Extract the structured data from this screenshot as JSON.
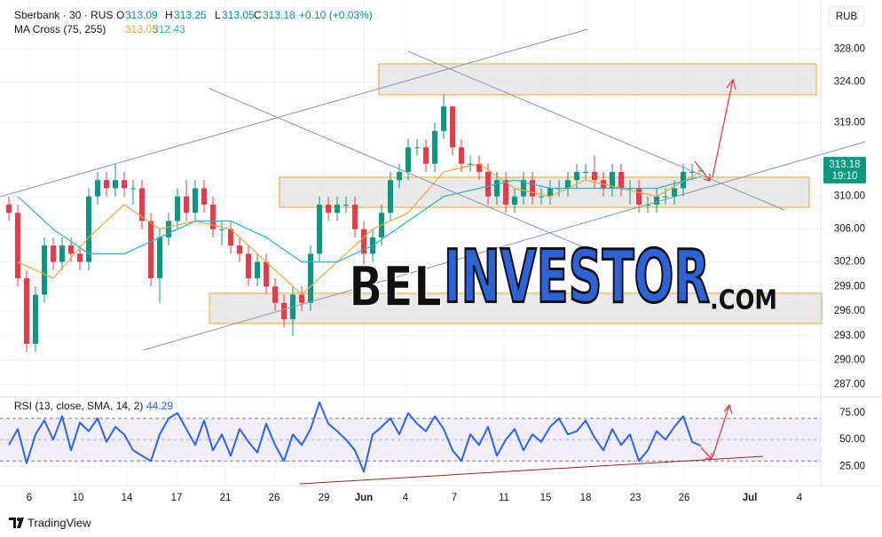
{
  "chart_data": [
    {
      "type": "candlestick",
      "title": "Sberbank · 30 · RUS",
      "ohlc_labels": [
        "O",
        "H",
        "L",
        "C"
      ],
      "change": "+0.10 (+0.03%)",
      "currency": "RUB",
      "countdown": "19:10",
      "indicator": "MA Cross (75, 255)",
      "up_color": "#089981",
      "down_color": "#f23645",
      "grid": true,
      "x": [
        1,
        2,
        3,
        4,
        5,
        6,
        7,
        8,
        9,
        10,
        11,
        12,
        13,
        14,
        15,
        16,
        17,
        18,
        19,
        20,
        21,
        22,
        23,
        24,
        25,
        26,
        27,
        28,
        29,
        30,
        31,
        32,
        33,
        34,
        35,
        36,
        37,
        38,
        39,
        40,
        41,
        42,
        43,
        44,
        45,
        46,
        47,
        48,
        49,
        50,
        51,
        52,
        53,
        54,
        55,
        56,
        57,
        58,
        59,
        60,
        61,
        62,
        63,
        64,
        65,
        66,
        67,
        68,
        69,
        70,
        71,
        72,
        73,
        74,
        75,
        76,
        77,
        78,
        79
      ],
      "open": [
        309,
        308,
        300,
        292,
        298,
        304,
        302,
        304,
        303,
        302,
        310,
        312,
        311,
        312,
        311,
        311,
        307,
        300,
        305,
        307,
        310,
        308,
        311,
        309,
        306,
        306,
        304,
        303,
        300,
        302,
        299,
        297,
        295,
        298,
        297,
        303,
        309,
        308,
        309,
        309,
        306,
        303,
        305,
        308,
        312,
        313,
        316,
        316,
        314,
        318,
        321,
        316,
        314,
        314,
        313,
        310,
        312,
        309,
        310,
        312,
        310,
        310,
        311,
        311,
        312,
        313,
        313,
        312,
        311,
        313,
        311,
        311,
        309,
        309,
        310,
        310,
        311,
        313,
        313.09
      ],
      "high": [
        310,
        309,
        301,
        299,
        305,
        305,
        305,
        305,
        304,
        311,
        313,
        313,
        314,
        313,
        312,
        312,
        308,
        306,
        308,
        311,
        312,
        312,
        312,
        310,
        307,
        307,
        305,
        304,
        303,
        303,
        300,
        298,
        299,
        299,
        304,
        310,
        310,
        310,
        310,
        310,
        307,
        306,
        309,
        313,
        314,
        317,
        317,
        317,
        319,
        322.5,
        321,
        317,
        315,
        315,
        314,
        313,
        313,
        311,
        313,
        313,
        311,
        312,
        312,
        313,
        314,
        314,
        315,
        313,
        314,
        314,
        312,
        312,
        310,
        311,
        311,
        312,
        314,
        314,
        313.25
      ],
      "low": [
        307,
        299,
        291,
        291,
        297,
        301,
        301,
        302,
        301,
        301,
        309,
        310,
        310,
        310,
        309,
        306,
        299,
        297,
        304,
        306,
        307,
        307,
        308,
        305,
        304,
        303,
        302,
        299,
        299,
        298,
        296,
        294,
        293,
        296,
        296,
        302,
        307,
        307,
        308,
        305,
        301,
        302,
        304,
        307,
        311,
        312,
        315,
        313,
        313,
        317,
        315,
        313,
        313,
        312,
        309,
        309,
        308,
        308,
        309,
        309,
        309,
        309,
        310,
        310,
        311,
        312,
        311,
        310,
        310,
        310,
        309,
        308,
        308,
        308,
        309,
        309,
        310,
        312,
        313.05
      ],
      "close": [
        308,
        300,
        292,
        298,
        304,
        302,
        304,
        303,
        302,
        310,
        312,
        311,
        312,
        311,
        311,
        307,
        300,
        305,
        307,
        310,
        308,
        311,
        309,
        306,
        306,
        304,
        303,
        300,
        302,
        299,
        297,
        295,
        298,
        297,
        303,
        309,
        308,
        309,
        309,
        306,
        303,
        305,
        308,
        312,
        313,
        316,
        316,
        314,
        318,
        321,
        316,
        314,
        314,
        313,
        310,
        312,
        309,
        310,
        312,
        310,
        310,
        311,
        311,
        312,
        313,
        313,
        312,
        311,
        313,
        311,
        311,
        309,
        309,
        310,
        310,
        311,
        313,
        313,
        313.18
      ],
      "series": [
        {
          "color": "#f7a43a",
          "x": [
            2,
            6,
            10,
            14,
            18,
            22,
            26,
            30,
            34,
            38,
            42,
            46,
            50,
            54,
            58,
            62,
            66,
            70,
            74,
            79
          ],
          "values": [
            302,
            300,
            305,
            309,
            306,
            307,
            306,
            302,
            298,
            302,
            306,
            308,
            313,
            314,
            311,
            310,
            312,
            311,
            310,
            313.05
          ]
        },
        {
          "color": "#26b5c8",
          "x": [
            2,
            6,
            10,
            14,
            18,
            22,
            26,
            30,
            34,
            38,
            42,
            46,
            50,
            54,
            58,
            62,
            66,
            70,
            74,
            79
          ],
          "values": [
            310,
            306,
            303,
            303,
            305,
            307,
            307,
            305,
            302,
            302,
            304,
            307,
            310,
            311,
            312,
            311,
            311,
            311,
            311,
            312.43
          ]
        }
      ],
      "xlim": [
        0,
        92.5
      ],
      "xticks": [
        {
          "value": 3.3,
          "label": "6"
        },
        {
          "value": 8.8,
          "label": "10"
        },
        {
          "value": 14.3,
          "label": "14"
        },
        {
          "value": 19.9,
          "label": "17"
        },
        {
          "value": 25.4,
          "label": "21"
        },
        {
          "value": 30.9,
          "label": "26"
        },
        {
          "value": 36.5,
          "label": "29"
        },
        {
          "value": 41,
          "label": "Jun"
        },
        {
          "value": 45.7,
          "label": "4"
        },
        {
          "value": 51.2,
          "label": "7"
        },
        {
          "value": 56.8,
          "label": "11"
        },
        {
          "value": 61.5,
          "label": "15"
        },
        {
          "value": 66,
          "label": "18"
        },
        {
          "value": 71.6,
          "label": "23"
        },
        {
          "value": 77.1,
          "label": "26"
        },
        {
          "value": 84.5,
          "label": "Jul"
        },
        {
          "value": 90.1,
          "label": "4"
        }
      ],
      "ylim": [
        285.5,
        334
      ],
      "yticks": [
        {
          "value": 287,
          "label": "287.00"
        },
        {
          "value": 290,
          "label": "290.00"
        },
        {
          "value": 293,
          "label": "293.00"
        },
        {
          "value": 296,
          "label": "296.00"
        },
        {
          "value": 299,
          "label": "299.00"
        },
        {
          "value": 302,
          "label": "302.00"
        },
        {
          "value": 306,
          "label": "306.00"
        },
        {
          "value": 310,
          "label": "310.00"
        },
        {
          "value": 319,
          "label": "319.00"
        },
        {
          "value": 324,
          "label": "324.00"
        },
        {
          "value": 328,
          "label": "328.00"
        }
      ]
    },
    {
      "type": "line",
      "title": "RSI (13, close, SMA, 14, 2)",
      "color": "#2962ff",
      "band": [
        30,
        70
      ],
      "x": [
        1,
        2,
        3,
        4,
        5,
        6,
        7,
        8,
        9,
        10,
        11,
        12,
        13,
        14,
        15,
        16,
        17,
        18,
        19,
        20,
        21,
        22,
        23,
        24,
        25,
        26,
        27,
        28,
        29,
        30,
        31,
        32,
        33,
        34,
        35,
        36,
        37,
        38,
        39,
        40,
        41,
        42,
        43,
        44,
        45,
        46,
        47,
        48,
        49,
        50,
        51,
        52,
        53,
        54,
        55,
        56,
        57,
        58,
        59,
        60,
        61,
        62,
        63,
        64,
        65,
        66,
        67,
        68,
        69,
        70,
        71,
        72,
        73,
        74,
        75,
        76,
        77,
        78,
        79
      ],
      "values": [
        45,
        60,
        28,
        55,
        68,
        50,
        72,
        40,
        66,
        58,
        70,
        48,
        62,
        55,
        40,
        35,
        30,
        55,
        70,
        75,
        60,
        45,
        68,
        40,
        55,
        35,
        60,
        48,
        38,
        65,
        45,
        30,
        55,
        45,
        60,
        85,
        65,
        58,
        50,
        40,
        20,
        55,
        62,
        70,
        55,
        75,
        65,
        58,
        72,
        60,
        40,
        30,
        55,
        45,
        62,
        35,
        50,
        60,
        40,
        55,
        48,
        62,
        70,
        55,
        58,
        68,
        52,
        40,
        60,
        45,
        55,
        30,
        40,
        58,
        50,
        62,
        72,
        48,
        44.29
      ],
      "ylim": [
        7,
        90
      ],
      "yticks": [
        {
          "value": 25,
          "label": "25.00"
        },
        {
          "value": 50,
          "label": "50.00"
        },
        {
          "value": 75,
          "label": "75.00"
        }
      ]
    }
  ],
  "watermark": {
    "first": "BEL",
    "second": "INVESTOR",
    "third": ".COM"
  },
  "footer": "TradingView"
}
